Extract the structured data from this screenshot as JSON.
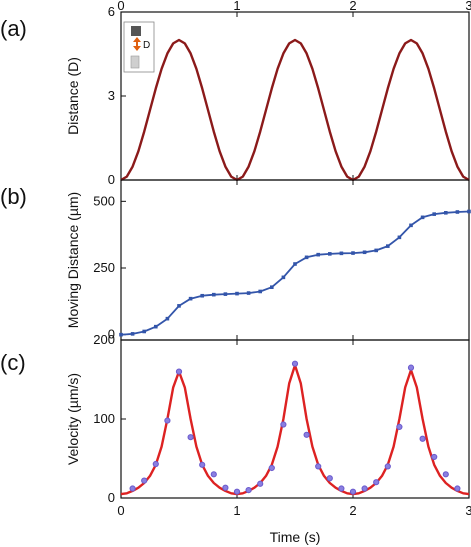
{
  "chart_data": [
    {
      "panel": "(a)",
      "type": "line",
      "xlabel": "",
      "ylabel": "Distance (D)",
      "xlim": [
        0,
        3
      ],
      "ylim": [
        0,
        6
      ],
      "xticks": [
        "0",
        "1",
        "2",
        "3"
      ],
      "yticks": [
        "0",
        "3",
        "6"
      ],
      "legend": {
        "placement": "top-left",
        "label": "D"
      },
      "series": [
        {
          "color": "#8b1a1a",
          "x": [
            0,
            0.05,
            0.1,
            0.15,
            0.2,
            0.25,
            0.3,
            0.35,
            0.4,
            0.45,
            0.5,
            0.55,
            0.6,
            0.65,
            0.7,
            0.75,
            0.8,
            0.85,
            0.9,
            0.95,
            1.0,
            1.05,
            1.1,
            1.15,
            1.2,
            1.25,
            1.3,
            1.35,
            1.4,
            1.45,
            1.5,
            1.55,
            1.6,
            1.65,
            1.7,
            1.75,
            1.8,
            1.85,
            1.9,
            1.95,
            2.0,
            2.05,
            2.1,
            2.15,
            2.2,
            2.25,
            2.3,
            2.35,
            2.4,
            2.45,
            2.5,
            2.55,
            2.6,
            2.65,
            2.7,
            2.75,
            2.8,
            2.85,
            2.9,
            2.95,
            3.0
          ],
          "y": [
            0,
            0.12,
            0.48,
            1.03,
            1.73,
            2.5,
            3.27,
            3.97,
            4.52,
            4.88,
            5.0,
            4.88,
            4.52,
            3.97,
            3.27,
            2.5,
            1.73,
            1.03,
            0.48,
            0.12,
            0,
            0.12,
            0.48,
            1.03,
            1.73,
            2.5,
            3.27,
            3.97,
            4.52,
            4.88,
            5.0,
            4.88,
            4.52,
            3.97,
            3.27,
            2.5,
            1.73,
            1.03,
            0.48,
            0.12,
            0,
            0.12,
            0.48,
            1.03,
            1.73,
            2.5,
            3.27,
            3.97,
            4.52,
            4.88,
            5.0,
            4.88,
            4.52,
            3.97,
            3.27,
            2.5,
            1.73,
            1.03,
            0.48,
            0.12,
            0
          ]
        }
      ]
    },
    {
      "panel": "(b)",
      "type": "line",
      "xlabel": "",
      "ylabel": "Moving Distance (µm)",
      "xlim": [
        0,
        3
      ],
      "ylim": [
        -20,
        580
      ],
      "yticks": [
        "0",
        "250",
        "500"
      ],
      "series": [
        {
          "color": "#3355aa",
          "x": [
            0,
            0.1,
            0.2,
            0.3,
            0.4,
            0.5,
            0.6,
            0.7,
            0.8,
            0.9,
            1.0,
            1.1,
            1.2,
            1.3,
            1.4,
            1.5,
            1.6,
            1.7,
            1.8,
            1.9,
            2.0,
            2.1,
            2.2,
            2.3,
            2.4,
            2.5,
            2.6,
            2.7,
            2.8,
            2.9,
            3.0
          ],
          "y": [
            0,
            3,
            12,
            30,
            60,
            108,
            135,
            146,
            150,
            152,
            154,
            156,
            162,
            178,
            215,
            265,
            290,
            300,
            303,
            305,
            306,
            309,
            316,
            332,
            365,
            410,
            440,
            452,
            457,
            460,
            462
          ]
        }
      ]
    },
    {
      "panel": "(c)",
      "type": "line",
      "xlabel": "Time (s)",
      "ylabel": "Velocity (µm/s)",
      "xlim": [
        0,
        3
      ],
      "ylim": [
        0,
        200
      ],
      "xticks": [
        "0",
        "1",
        "2",
        "3"
      ],
      "yticks": [
        "0",
        "100",
        "200"
      ],
      "series": [
        {
          "kind": "fit",
          "color": "#dd2222",
          "x": [
            0,
            0.05,
            0.1,
            0.15,
            0.2,
            0.25,
            0.3,
            0.35,
            0.4,
            0.45,
            0.5,
            0.55,
            0.6,
            0.65,
            0.7,
            0.75,
            0.8,
            0.85,
            0.9,
            0.95,
            1.0,
            1.05,
            1.1,
            1.15,
            1.2,
            1.25,
            1.3,
            1.35,
            1.4,
            1.45,
            1.5,
            1.55,
            1.6,
            1.65,
            1.7,
            1.75,
            1.8,
            1.85,
            1.9,
            1.95,
            2.0,
            2.05,
            2.1,
            2.15,
            2.2,
            2.25,
            2.3,
            2.35,
            2.4,
            2.45,
            2.5,
            2.55,
            2.6,
            2.65,
            2.7,
            2.75,
            2.8,
            2.85,
            2.9,
            2.95,
            3.0
          ],
          "y": [
            5,
            6,
            9,
            13,
            19,
            28,
            42,
            65,
            100,
            140,
            160,
            140,
            100,
            65,
            42,
            28,
            19,
            13,
            9,
            6,
            5,
            6,
            9,
            13,
            19,
            28,
            42,
            65,
            100,
            145,
            168,
            145,
            100,
            65,
            42,
            28,
            19,
            13,
            9,
            6,
            5,
            6,
            9,
            13,
            19,
            28,
            42,
            65,
            100,
            140,
            162,
            140,
            100,
            65,
            42,
            28,
            19,
            13,
            9,
            6,
            5
          ]
        },
        {
          "kind": "points",
          "color": "#6a5acd",
          "x": [
            0.1,
            0.2,
            0.3,
            0.4,
            0.5,
            0.6,
            0.7,
            0.8,
            0.9,
            1.0,
            1.1,
            1.2,
            1.3,
            1.4,
            1.5,
            1.6,
            1.7,
            1.8,
            1.9,
            2.0,
            2.1,
            2.2,
            2.3,
            2.4,
            2.5,
            2.6,
            2.7,
            2.8,
            2.9
          ],
          "y": [
            12,
            22,
            43,
            98,
            160,
            77,
            42,
            30,
            13,
            8,
            10,
            18,
            38,
            93,
            170,
            80,
            40,
            25,
            12,
            8,
            12,
            20,
            40,
            90,
            165,
            75,
            52,
            30,
            12
          ]
        }
      ]
    }
  ],
  "labels": {
    "a": "(a)",
    "b": "(b)",
    "c": "(c)"
  }
}
